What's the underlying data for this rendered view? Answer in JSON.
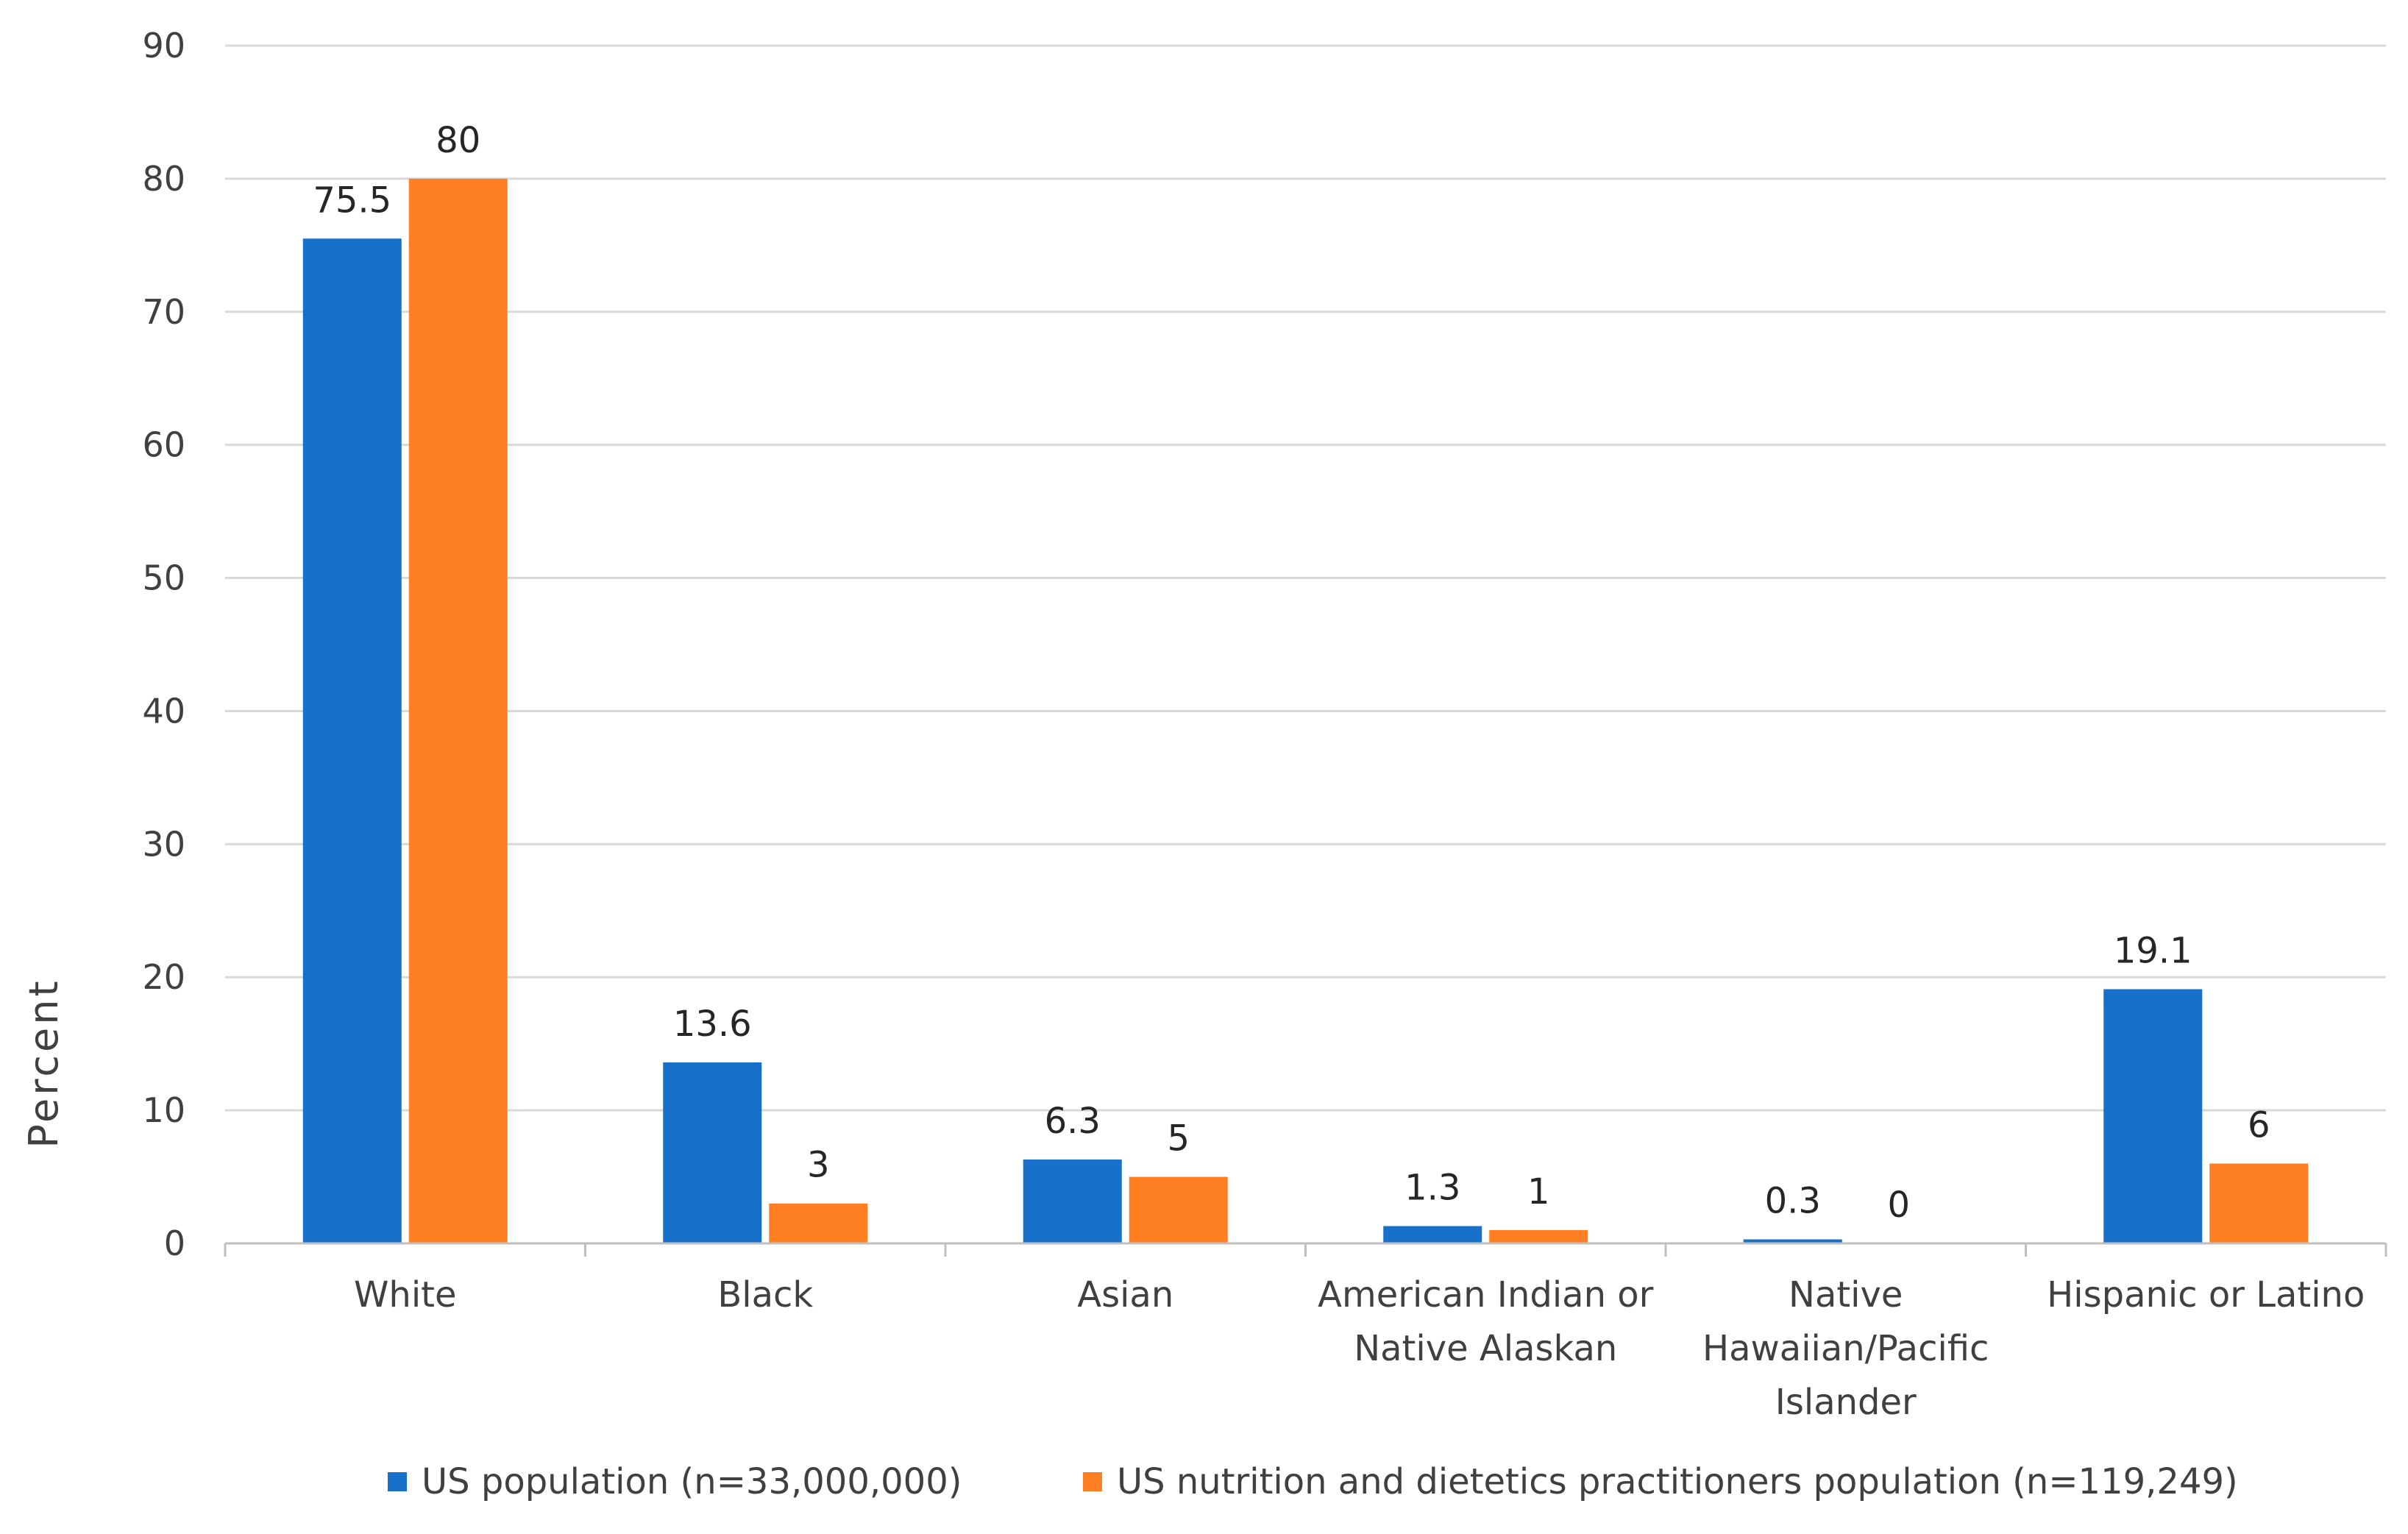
{
  "chart_data": {
    "type": "bar",
    "title": "",
    "xlabel": "",
    "ylabel": "Percent",
    "ylim": [
      0,
      90
    ],
    "yticks": [
      0,
      10,
      20,
      30,
      40,
      50,
      60,
      70,
      80,
      90
    ],
    "grid": true,
    "legend_position": "bottom",
    "categories": [
      [
        "White"
      ],
      [
        "Black"
      ],
      [
        "Asian"
      ],
      [
        "American Indian or",
        "Native Alaskan"
      ],
      [
        "Native",
        "Hawaiian/Pacific",
        "Islander"
      ],
      [
        "Hispanic or Latino"
      ]
    ],
    "series": [
      {
        "name": "US population (n=33,000,000)",
        "color": "#1770CA",
        "values": [
          75.5,
          13.6,
          6.3,
          1.3,
          0.3,
          19.1
        ],
        "labels": [
          "75.5",
          "13.6",
          "6.3",
          "1.3",
          "0.3",
          "19.1"
        ]
      },
      {
        "name": "US nutrition and dietetics practitioners population (n=119,249)",
        "color": "#FF7F22",
        "values": [
          80,
          3,
          5,
          1,
          0,
          6
        ],
        "labels": [
          "80",
          "3",
          "5",
          "1",
          "0",
          "6"
        ]
      }
    ]
  }
}
